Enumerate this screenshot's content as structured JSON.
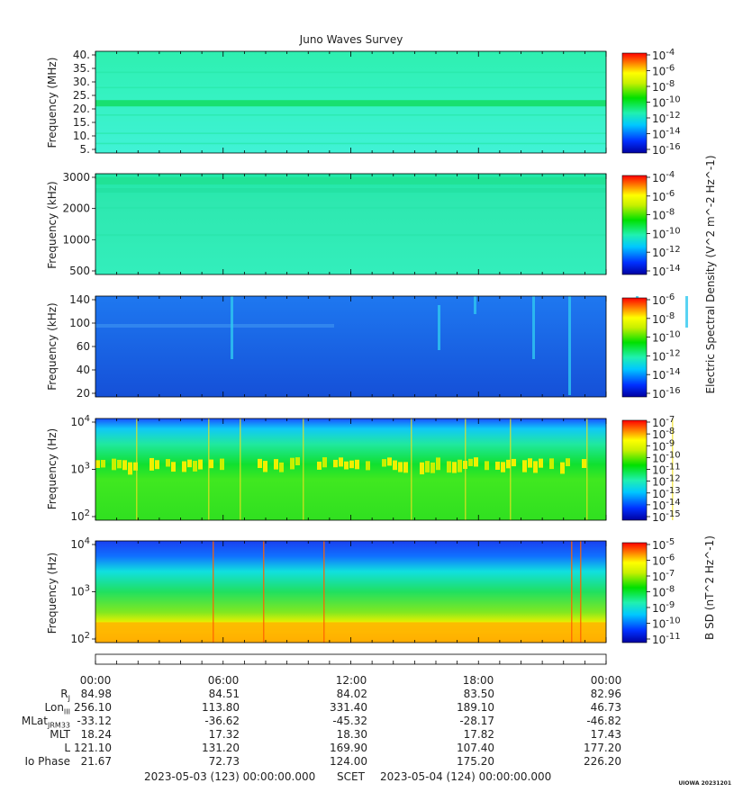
{
  "chart_data": {
    "type": "heatmap",
    "title": "Juno Waves Survey",
    "x_ticks": [
      "00:00",
      "06:00",
      "12:00",
      "18:00",
      "00:00"
    ],
    "panels": [
      {
        "ylabel": "Frequency (MHz)",
        "yticks": [
          "40.",
          "35.",
          "30.",
          "25.",
          "20.",
          "15.",
          "10.",
          "5."
        ],
        "colorbar_ticks": [
          "10^-4",
          "10^-6",
          "10^-8",
          "10^-10",
          "10^-12",
          "10^-14",
          "10^-16"
        ],
        "base_color": "#33f0c0"
      },
      {
        "ylabel": "Frequency (kHz)",
        "yticks": [
          "3000",
          "2000",
          "1000",
          "500"
        ],
        "colorbar_ticks": [
          "10^-4",
          "10^-6",
          "10^-8",
          "10^-10",
          "10^-12",
          "10^-14"
        ],
        "base_color": "#2ee6b2"
      },
      {
        "ylabel": "Frequency (kHz)",
        "yticks": [
          "140",
          "100",
          "60",
          "40",
          "20"
        ],
        "colorbar_ticks": [
          "10^-6",
          "10^-8",
          "10^-10",
          "10^-12",
          "10^-14",
          "10^-16"
        ],
        "base_color": "#1f6ee8"
      },
      {
        "ylabel": "Frequency (Hz)",
        "yticks": [
          "10^4",
          "10^3",
          "10^2"
        ],
        "colorbar_ticks": [
          "10^-7",
          "10^-8",
          "10^-9",
          "10^-10",
          "10^-11",
          "10^-12",
          "10^-13",
          "10^-14",
          "10^-15"
        ],
        "base_color": "#22dd55"
      },
      {
        "ylabel": "Frequency (Hz)",
        "yticks": [
          "10^4",
          "10^3",
          "10^2"
        ],
        "colorbar_ticks": [
          "10^-5",
          "10^-6",
          "10^-7",
          "10^-8",
          "10^-9",
          "10^-10",
          "10^-11"
        ],
        "base_color": "#22dd55"
      }
    ],
    "colorbar_label_electric": "Electric Spectral Density (V^2 m^-2 Hz^-1)",
    "colorbar_label_magnetic": "B SD (nT^2 Hz^-1)"
  },
  "ephemeris": {
    "labels": [
      "R_J",
      "Lon_III",
      "MLat_JRM33",
      "MLT",
      "L",
      "Io Phase"
    ],
    "rows": [
      [
        "84.98",
        "84.51",
        "84.02",
        "83.50",
        "82.96"
      ],
      [
        "256.10",
        "113.80",
        "331.40",
        "189.10",
        "46.73"
      ],
      [
        "-33.12",
        "-36.62",
        "-45.32",
        "-28.17",
        "-46.82"
      ],
      [
        "18.24",
        "17.32",
        "18.30",
        "17.82",
        "17.43"
      ],
      [
        "121.10",
        "131.20",
        "169.90",
        "107.40",
        "177.20"
      ],
      [
        "21.67",
        "72.73",
        "124.00",
        "175.20",
        "226.20"
      ]
    ]
  },
  "footer": {
    "start": "2023-05-03 (123) 00:00:00.000",
    "scet": "SCET",
    "end": "2023-05-04 (124) 00:00:00.000"
  },
  "stamp": "UIOWA 20231201"
}
